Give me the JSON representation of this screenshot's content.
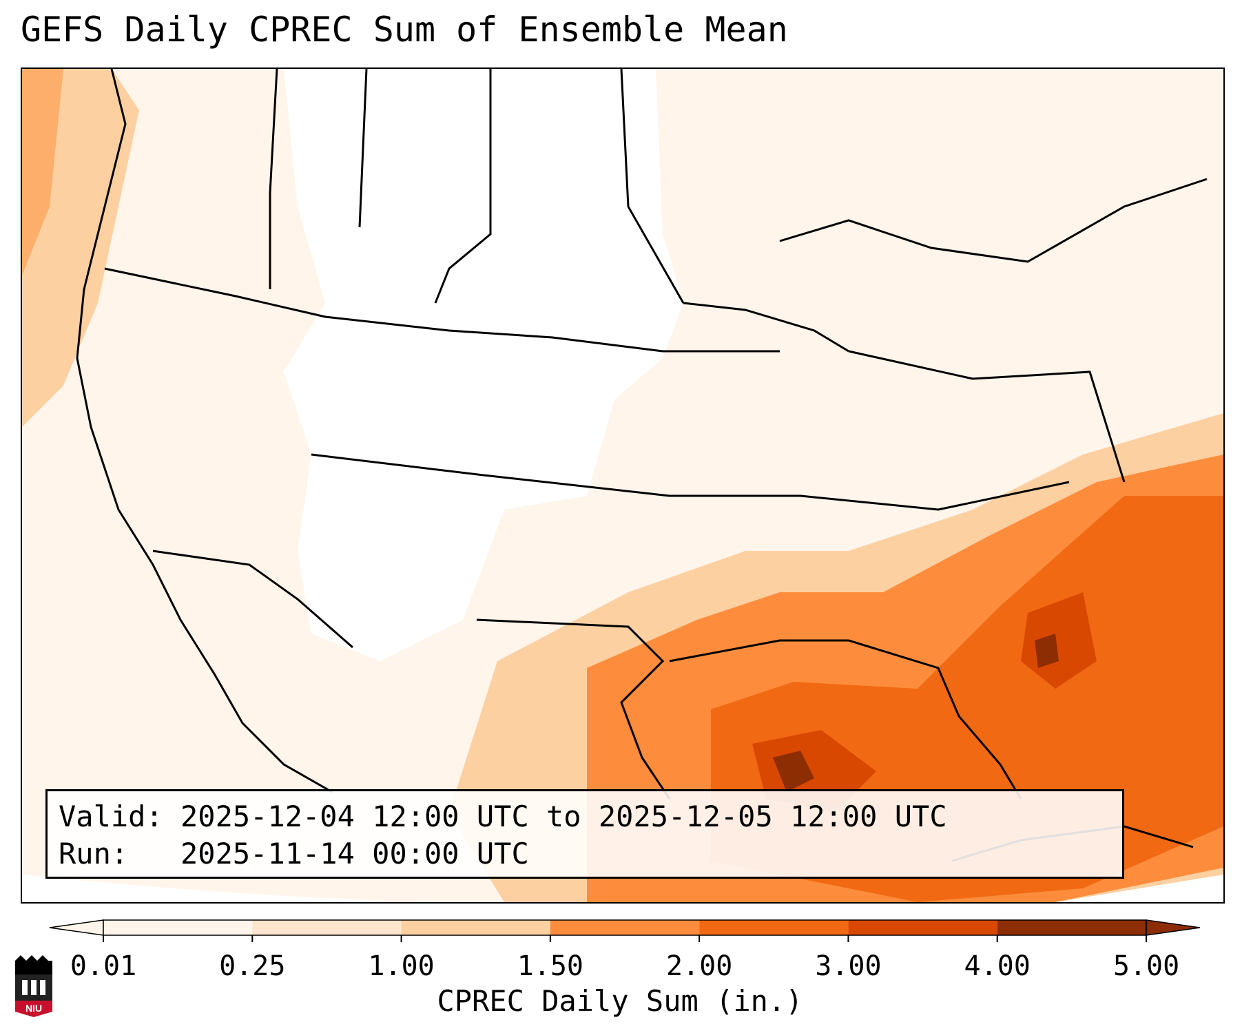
{
  "title": "GEFS Daily CPREC Sum of Ensemble Mean",
  "info": {
    "valid_label": "Valid:",
    "valid_value": "2025-12-04 12:00 UTC to 2025-12-05 12:00 UTC",
    "run_label": "Run:",
    "run_value": "2025-11-14 00:00 UTC"
  },
  "colorbar": {
    "label": "CPREC Daily Sum (in.)",
    "ticks": [
      "0.01",
      "0.25",
      "1.00",
      "1.50",
      "2.00",
      "3.00",
      "4.00",
      "5.00"
    ],
    "colors": [
      "#fff5eb",
      "#fee6ce",
      "#fdd0a2",
      "#fd8d3c",
      "#f16913",
      "#d94801",
      "#8c2d04"
    ],
    "extend": "both"
  },
  "map": {
    "projection": "Lambert conformal",
    "region": "CONUS",
    "field": "CPREC daily sum",
    "background_color": "#ffffff",
    "border_color": "#000000"
  },
  "logo": {
    "text": "NIU",
    "icon": "niu-logo-icon",
    "color_top": "#000000",
    "color_bottom": "#c8102e"
  }
}
